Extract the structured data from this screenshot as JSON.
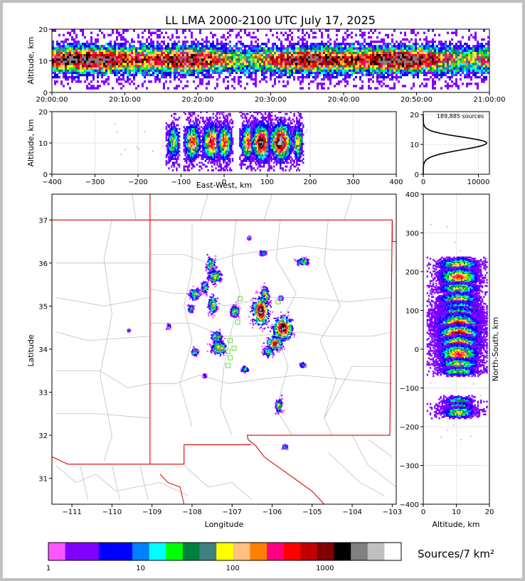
{
  "chart_data": [
    {
      "panel": "time-altitude",
      "type": "heatmap",
      "title": "LL LMA 2000-2100 UTC July 17, 2025",
      "ylabel": "Altitude, km",
      "xlim": [
        "20:00:00",
        "21:00:00"
      ],
      "ylim": [
        0,
        20
      ],
      "x_ticks": [
        "20:00:00",
        "20:10:00",
        "20:20:00",
        "20:30:00",
        "20:40:00",
        "20:50:00",
        "21:00:00"
      ],
      "y_ticks": [
        0,
        10,
        20
      ],
      "core_altitude_km": 10
    },
    {
      "panel": "east-west-altitude",
      "type": "heatmap",
      "xlabel": "East-West, km",
      "ylabel": "Altitude, km",
      "xlim": [
        -400,
        400
      ],
      "ylim": [
        0,
        20
      ],
      "x_ticks": [
        -400,
        -300,
        -200,
        -100,
        0,
        100,
        200,
        300,
        400
      ],
      "y_ticks": [
        0,
        10,
        20
      ],
      "clusters_km": [
        -120,
        -75,
        -30,
        0,
        55,
        85,
        130,
        170
      ]
    },
    {
      "panel": "altitude-histogram",
      "type": "line",
      "annotation": "189,885 sources",
      "xlim": [
        0,
        12000
      ],
      "ylim": [
        0,
        21
      ],
      "x_ticks": [
        0,
        10000
      ],
      "y_ticks": [
        0,
        10,
        20
      ],
      "peak_altitude_km": 10.5,
      "peak_count": 11500
    },
    {
      "panel": "plan-view",
      "type": "heatmap",
      "xlabel": "Longitude",
      "ylabel": "Latitude",
      "xlim": [
        -111.5,
        -102.9
      ],
      "ylim": [
        30.4,
        37.6
      ],
      "x_ticks": [
        -111,
        -110,
        -109,
        -108,
        -107,
        -106,
        -105,
        -104,
        -103
      ],
      "y_ticks": [
        31,
        32,
        33,
        34,
        35,
        36,
        37
      ],
      "stations": [
        [
          -106.8,
          35.17
        ],
        [
          -106.86,
          34.63
        ],
        [
          -107.05,
          34.2
        ],
        [
          -106.95,
          34.02
        ],
        [
          -107.25,
          34.0
        ],
        [
          -107.1,
          33.95
        ],
        [
          -107.05,
          33.8
        ],
        [
          -107.1,
          33.62
        ],
        [
          -105.85,
          35.1
        ]
      ]
    },
    {
      "panel": "altitude-north-south",
      "type": "heatmap",
      "xlabel": "Altitude, km",
      "ylabel": "North-South, km",
      "xlim": [
        0,
        20
      ],
      "ylim": [
        -400,
        400
      ],
      "x_ticks": [
        0,
        10,
        20
      ],
      "y_ticks": [
        -400,
        -300,
        -200,
        -100,
        0,
        100,
        200,
        300,
        400
      ]
    },
    {
      "panel": "colorbar",
      "type": "heatmap",
      "label": "Sources/7 km²",
      "scale": "log",
      "tick_labels": [
        "1",
        "10",
        "100",
        "1000"
      ],
      "colors": [
        "#ff55ff",
        "#8000ff",
        "#8000ff",
        "#0000ff",
        "#0000ff",
        "#0080ff",
        "#00ffff",
        "#00ff00",
        "#008040",
        "#408080",
        "#ffff00",
        "#ffc080",
        "#ff8000",
        "#ff0080",
        "#ff0000",
        "#c00000",
        "#800000",
        "#000000",
        "#808080",
        "#c0c0c0",
        "#ffffff"
      ]
    }
  ]
}
